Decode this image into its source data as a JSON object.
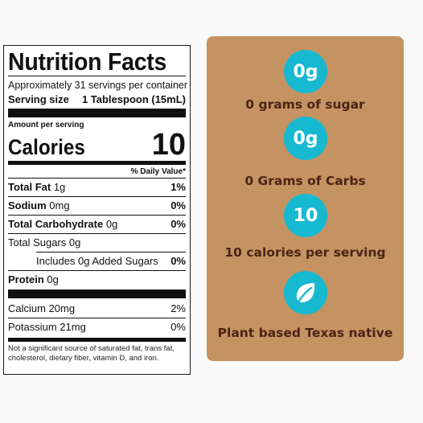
{
  "nutrition": {
    "title": "Nutrition Facts",
    "servings_per_container": "Approximately 31 servings per container",
    "serving_size_label": "Serving size",
    "serving_size_value": "1 Tablespoon (15mL)",
    "amount_per_serving": "Amount per serving",
    "calories_label": "Calories",
    "calories_value": "10",
    "daily_value_header": "% Daily Value*",
    "rows": [
      {
        "label": "Total Fat",
        "amount": "1g",
        "pct": "1%"
      },
      {
        "label": "Sodium",
        "amount": "0mg",
        "pct": "0%"
      },
      {
        "label": "Total Carbohydrate",
        "amount": "0g",
        "pct": "0%"
      },
      {
        "label": "Total Sugars 0g",
        "amount": "",
        "pct": ""
      },
      {
        "label": "Includes 0g Added Sugars",
        "amount": "",
        "pct": "0%"
      },
      {
        "label": "Protein",
        "amount": "0g",
        "pct": ""
      },
      {
        "label": "Calcium 20mg",
        "amount": "",
        "pct": "2%"
      },
      {
        "label": "Potassium 21mg",
        "amount": "",
        "pct": "0%"
      }
    ],
    "footnote": "Not a significant source of saturated fat, trans fat, cholesterol, dietary fiber, vitamin D, and iron."
  },
  "highlights": [
    {
      "badge": "0g",
      "text": "0 grams of sugar"
    },
    {
      "badge": "0g",
      "text": "0 Grams of Carbs"
    },
    {
      "badge": "10",
      "text": "10 calories per serving"
    },
    {
      "badge": "",
      "icon": "leaf-icon",
      "text": "Plant based Texas native"
    }
  ],
  "colors": {
    "panel": "#c49361",
    "badge": "#17b9d0",
    "panel_text": "#4a2414"
  }
}
